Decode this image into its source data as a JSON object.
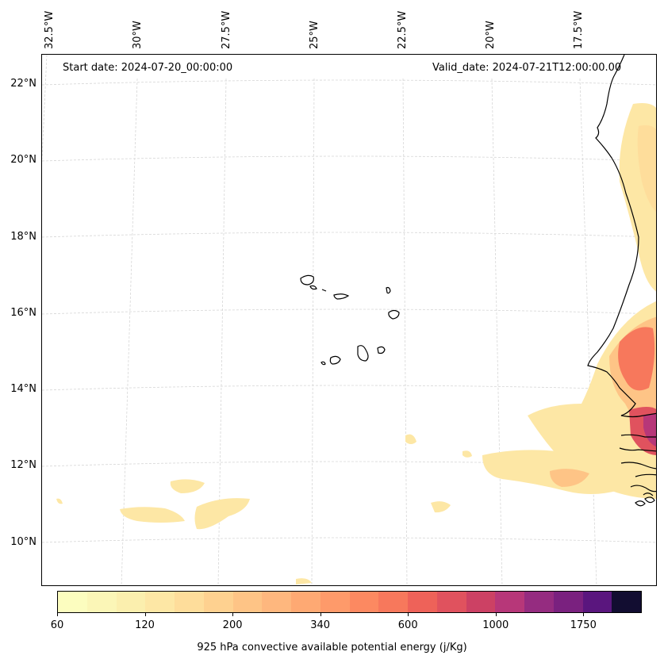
{
  "header": {
    "start_date": "Start date: 2024-07-20_00:00:00",
    "valid_date": "Valid_date: 2024-07-21T12:00:00.00"
  },
  "axes": {
    "longitude_labels": [
      "32.5°W",
      "30°W",
      "27.5°W",
      "25°W",
      "22.5°W",
      "20°W",
      "17.5°W"
    ],
    "latitude_labels": [
      "22°N",
      "20°N",
      "18°N",
      "16°N",
      "14°N",
      "12°N",
      "10°N"
    ]
  },
  "colorbar": {
    "ticks": [
      "60",
      "120",
      "200",
      "340",
      "600",
      "1000",
      "1750"
    ],
    "label": "925 hPa convective available potential energy (j/Kg)",
    "colors": [
      "#fcfdbf",
      "#fbf6b7",
      "#fbefae",
      "#fde7a5",
      "#fedd9b",
      "#fed190",
      "#fec486",
      "#feb77e",
      "#fea973",
      "#fe9a6a",
      "#fc8961",
      "#f7785c",
      "#ee6259",
      "#e0525e",
      "#cc4164",
      "#b73779",
      "#952c80",
      "#7a217f",
      "#5a167e",
      "#120d31"
    ]
  },
  "legend_note": {
    "colormap": "magma_r",
    "region": "Cape Verde / West Africa coast"
  }
}
